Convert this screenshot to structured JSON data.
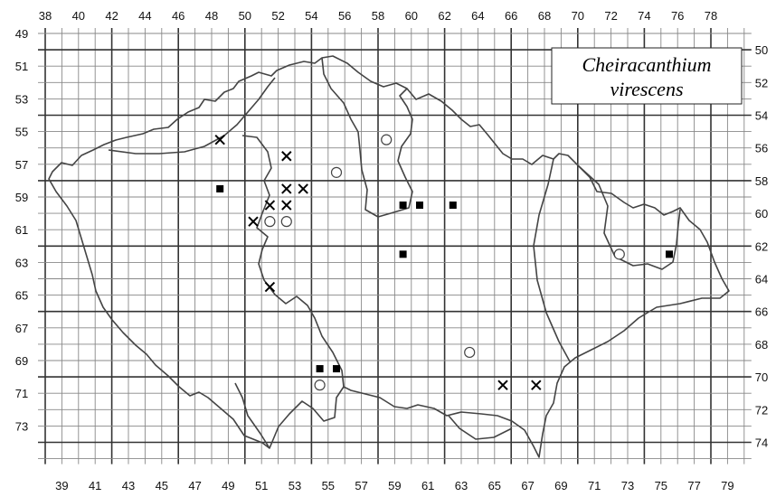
{
  "map": {
    "species_name": [
      "Cheiracanthium",
      "virescens"
    ],
    "grid": {
      "col_min": 38,
      "col_max": 79,
      "row_min": 49,
      "row_max": 74,
      "top_labels": [
        38,
        40,
        42,
        44,
        46,
        48,
        50,
        52,
        54,
        56,
        58,
        60,
        62,
        64,
        66,
        68,
        70,
        72,
        74,
        76,
        78
      ],
      "bottom_labels": [
        39,
        41,
        43,
        45,
        47,
        49,
        51,
        53,
        55,
        57,
        59,
        61,
        63,
        65,
        67,
        69,
        71,
        73,
        75,
        77,
        79
      ],
      "left_labels": [
        49,
        51,
        53,
        55,
        57,
        59,
        61,
        63,
        65,
        67,
        69,
        71,
        73
      ],
      "right_labels": [
        50,
        52,
        54,
        56,
        58,
        60,
        62,
        64,
        66,
        68,
        70,
        72,
        74
      ]
    },
    "records": {
      "filled_square": [
        [
          48,
          58
        ],
        [
          59,
          59
        ],
        [
          60,
          59
        ],
        [
          62,
          59
        ],
        [
          59,
          62
        ],
        [
          75,
          62
        ],
        [
          54,
          69
        ],
        [
          55,
          69
        ]
      ],
      "cross": [
        [
          48,
          55
        ],
        [
          52,
          56
        ],
        [
          52,
          58
        ],
        [
          53,
          58
        ],
        [
          51,
          59
        ],
        [
          52,
          59
        ],
        [
          50,
          60
        ],
        [
          51,
          64
        ],
        [
          65,
          70
        ],
        [
          67,
          70
        ]
      ],
      "open_circle": [
        [
          58,
          55
        ],
        [
          55,
          57
        ],
        [
          51,
          60
        ],
        [
          52,
          60
        ],
        [
          72,
          62
        ],
        [
          63,
          68
        ],
        [
          54,
          70
        ]
      ]
    }
  }
}
